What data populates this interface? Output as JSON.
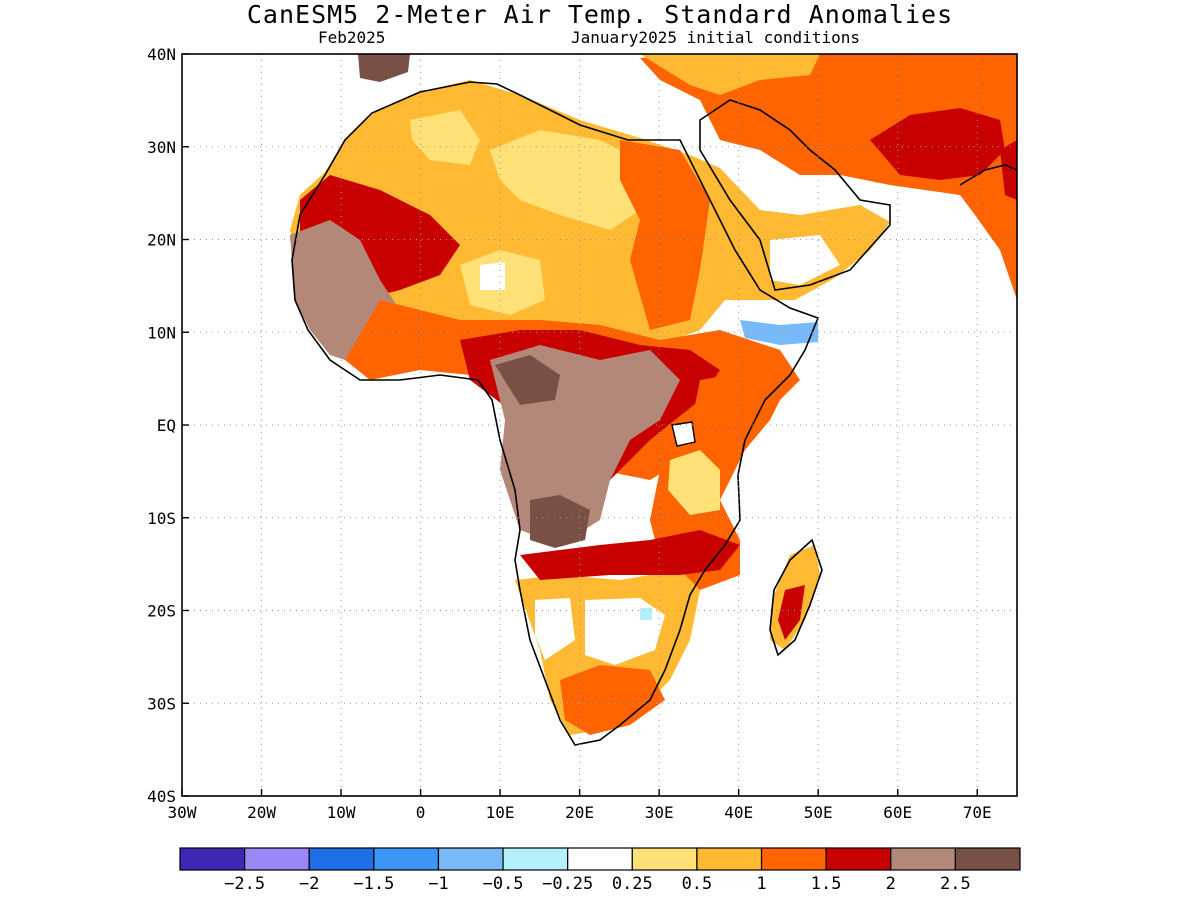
{
  "title": "CanESM5 2-Meter Air Temp. Standard Anomalies",
  "subtitle_left": "Feb2025",
  "subtitle_right": "January2025 initial conditions",
  "axes": {
    "lon_range": [
      -30,
      75
    ],
    "lat_range": [
      -40,
      40
    ],
    "x_ticks": [
      {
        "lon": -30,
        "label": "30W"
      },
      {
        "lon": -20,
        "label": "20W"
      },
      {
        "lon": -10,
        "label": "10W"
      },
      {
        "lon": 0,
        "label": "0"
      },
      {
        "lon": 10,
        "label": "10E"
      },
      {
        "lon": 20,
        "label": "20E"
      },
      {
        "lon": 30,
        "label": "30E"
      },
      {
        "lon": 40,
        "label": "40E"
      },
      {
        "lon": 50,
        "label": "50E"
      },
      {
        "lon": 60,
        "label": "60E"
      },
      {
        "lon": 70,
        "label": "70E"
      }
    ],
    "y_ticks": [
      {
        "lat": 40,
        "label": "40N"
      },
      {
        "lat": 30,
        "label": "30N"
      },
      {
        "lat": 20,
        "label": "20N"
      },
      {
        "lat": 10,
        "label": "10N"
      },
      {
        "lat": 0,
        "label": "EQ"
      },
      {
        "lat": -10,
        "label": "10S"
      },
      {
        "lat": -20,
        "label": "20S"
      },
      {
        "lat": -30,
        "label": "30S"
      },
      {
        "lat": -40,
        "label": "40S"
      }
    ],
    "grid": true
  },
  "colorbar": {
    "colors": [
      "#3c28b4",
      "#9b87f5",
      "#1e6ee6",
      "#3c96f5",
      "#78b9fa",
      "#b4f0fa",
      "#ffffff",
      "#ffe178",
      "#ffb932",
      "#ff6400",
      "#c80000",
      "#b48878",
      "#785046"
    ],
    "labels": [
      "-2.5",
      "-2",
      "-1.5",
      "-1",
      "-0.5",
      "-0.25",
      "0.25",
      "0.5",
      "1",
      "1.5",
      "2",
      "2.5"
    ]
  },
  "map_colors": {
    "lv05": "#ffe178",
    "lv1": "#ffb932",
    "lv15": "#ff6400",
    "lv2": "#c80000",
    "lv25": "#b48878",
    "lv3": "#785046",
    "neg1": "#78b9fa",
    "neg025": "#b4f0fa"
  }
}
